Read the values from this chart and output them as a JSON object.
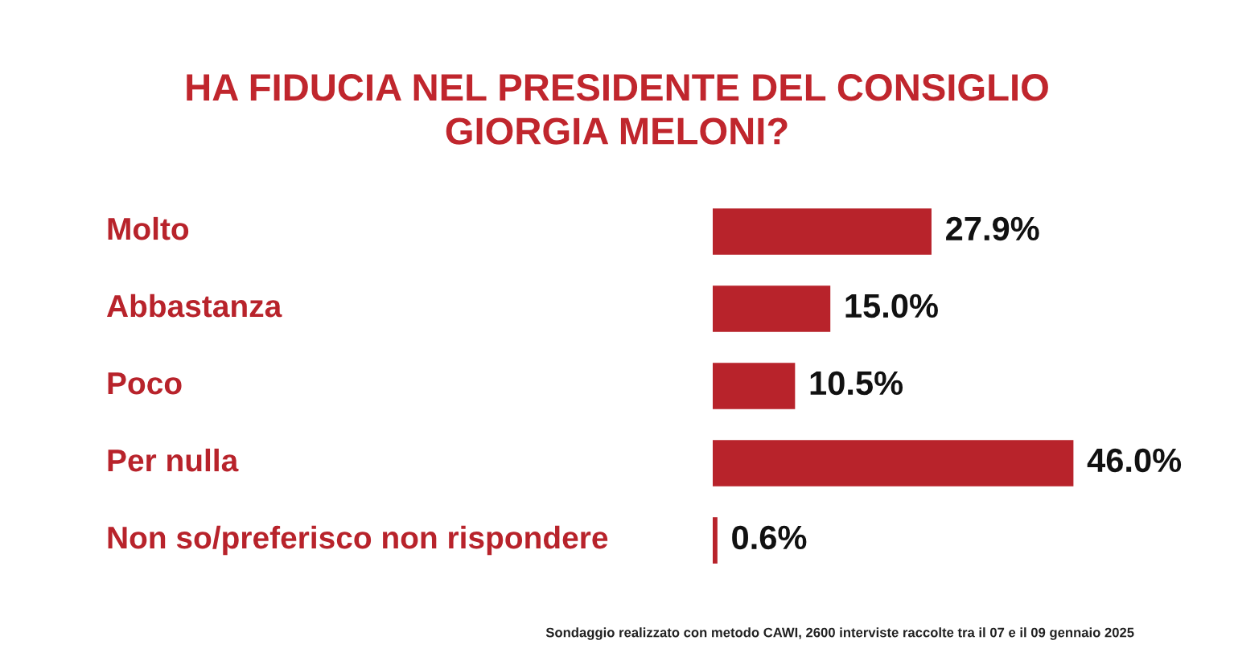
{
  "chart_data": {
    "type": "bar",
    "orientation": "horizontal",
    "title": "HA FIDUCIA NEL PRESIDENTE DEL CONSIGLIO\nGIORGIA MELONI?",
    "categories": [
      "Molto",
      "Abbastanza",
      "Poco",
      "Per nulla",
      "Non so/preferisco non rispondere"
    ],
    "values": [
      27.9,
      15.0,
      10.5,
      46.0,
      0.6
    ],
    "value_labels": [
      "27.9%",
      "15.0%",
      "10.5%",
      "46.0%",
      "0.6%"
    ],
    "color": "#b8232b",
    "annotations": [
      "Sondaggio realizzato con metodo CAWI, 2600 interviste raccolte tra il 07 e il 09 gennaio 2025"
    ]
  }
}
